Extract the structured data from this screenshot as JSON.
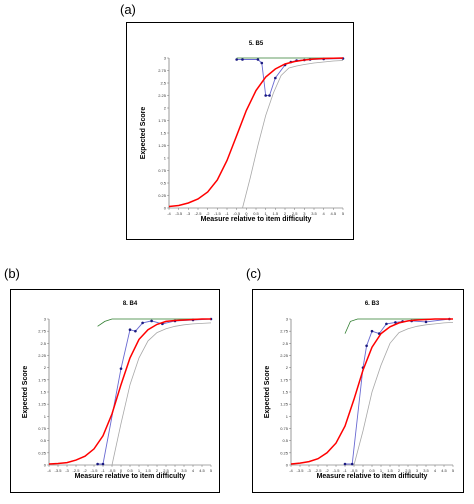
{
  "panels": [
    {
      "letter": "(a)"
    },
    {
      "letter": "(b)"
    },
    {
      "letter": "(c)"
    }
  ],
  "colors": {
    "model": "#ff0000",
    "observed": "#6a6ad2",
    "ci": "#a8a8a8",
    "ci_top": "#2f7d2f",
    "points": "#1a1a80",
    "frame": "#000000"
  },
  "chart_data": [
    {
      "type": "line",
      "title": "5. B5",
      "xlabel": "Measure relative to item difficulty",
      "ylabel": "Expected Score",
      "xlim": [
        -4,
        5
      ],
      "ylim": [
        0,
        3
      ],
      "xticks": [
        "-4",
        "-3.5",
        "-3",
        "-2.5",
        "-2",
        "-1.5",
        "-1",
        "-0.5",
        "0",
        "0.5",
        "1",
        "1.5",
        "2",
        "2.5",
        "3",
        "3.5",
        "4",
        "4.5",
        "5"
      ],
      "yticks": [
        "0",
        "0.25",
        "0.5",
        "0.75",
        "1",
        "1.25",
        "1.5",
        "1.75",
        "2",
        "2.25",
        "2.5",
        "2.75",
        "3"
      ],
      "series": [
        {
          "role": "model",
          "x": [
            -4,
            -3.5,
            -3,
            -2.5,
            -2,
            -1.5,
            -1,
            -0.5,
            0,
            0.5,
            1,
            1.5,
            2,
            2.5,
            3,
            3.5,
            4,
            4.5,
            5
          ],
          "y": [
            0.03,
            0.05,
            0.1,
            0.18,
            0.32,
            0.56,
            0.95,
            1.45,
            1.95,
            2.35,
            2.62,
            2.78,
            2.88,
            2.93,
            2.96,
            2.98,
            2.99,
            2.995,
            3.0
          ]
        },
        {
          "role": "observed",
          "x": [
            -0.5,
            -0.2,
            0.6,
            0.8,
            1.0,
            1.2,
            1.5,
            2.0,
            2.3,
            2.6,
            3.0,
            3.3,
            4.0,
            5.0
          ],
          "y": [
            2.97,
            2.97,
            2.97,
            2.9,
            2.25,
            2.25,
            2.6,
            2.86,
            2.92,
            2.95,
            2.96,
            2.97,
            2.98,
            2.99
          ]
        },
        {
          "role": "ci-lower",
          "x": [
            -0.2,
            0.2,
            0.6,
            1.0,
            1.4,
            1.8,
            2.2,
            2.6,
            3.0,
            3.5,
            4.0,
            4.5,
            5.0
          ],
          "y": [
            0,
            0.6,
            1.25,
            1.85,
            2.3,
            2.65,
            2.8,
            2.84,
            2.87,
            2.9,
            2.92,
            2.94,
            2.95
          ]
        },
        {
          "role": "ci-upper",
          "x": [
            -0.5,
            5.0
          ],
          "y": [
            3.0,
            3.0
          ]
        }
      ]
    },
    {
      "type": "line",
      "title": "8. B4",
      "xlabel": "Measure relative to item difficulty",
      "ylabel": "Expected Score",
      "xlim": [
        -4,
        5
      ],
      "ylim": [
        0,
        3
      ],
      "xticks": [
        "-4",
        "-3.5",
        "-3",
        "-2.5",
        "-2",
        "-1.5",
        "-1",
        "-0.5",
        "0",
        "0.5",
        "1",
        "1.5",
        "2",
        "2.5",
        "3",
        "3.5",
        "4",
        "4.5",
        "5"
      ],
      "yticks": [
        "0",
        "0.25",
        "0.5",
        "0.75",
        "1",
        "1.25",
        "1.5",
        "1.75",
        "2",
        "2.25",
        "2.5",
        "2.75",
        "3"
      ],
      "series": [
        {
          "role": "model",
          "x": [
            -4,
            -3.5,
            -3,
            -2.5,
            -2,
            -1.5,
            -1,
            -0.5,
            0,
            0.5,
            1,
            1.5,
            2,
            2.5,
            3,
            3.5,
            4,
            4.5,
            5
          ],
          "y": [
            0.02,
            0.03,
            0.05,
            0.1,
            0.18,
            0.33,
            0.6,
            1.05,
            1.65,
            2.2,
            2.58,
            2.78,
            2.89,
            2.95,
            2.97,
            2.98,
            2.99,
            3.0,
            3.0
          ]
        },
        {
          "role": "observed",
          "x": [
            -1.3,
            -1.0,
            0.0,
            0.5,
            0.8,
            1.2,
            1.7,
            2.3,
            3.0,
            4.0,
            5.0
          ],
          "y": [
            0.02,
            0.02,
            1.98,
            2.78,
            2.75,
            2.92,
            2.96,
            2.9,
            2.96,
            2.98,
            3.0
          ]
        },
        {
          "role": "ci-lower",
          "x": [
            -0.5,
            0,
            0.5,
            1.0,
            1.5,
            2.0,
            2.5,
            3.0,
            3.5,
            4.0,
            4.5,
            5.0
          ],
          "y": [
            0,
            0.85,
            1.65,
            2.2,
            2.55,
            2.72,
            2.8,
            2.85,
            2.88,
            2.9,
            2.91,
            2.92
          ]
        },
        {
          "role": "ci-upper",
          "x": [
            -1.3,
            -0.9,
            -0.5,
            5.0
          ],
          "y": [
            2.85,
            2.95,
            3.0,
            3.0
          ]
        }
      ]
    },
    {
      "type": "line",
      "title": "6. B3",
      "xlabel": "Measure relative to item difficulty",
      "ylabel": "Expected Score",
      "xlim": [
        -4,
        5
      ],
      "ylim": [
        0,
        3
      ],
      "xticks": [
        "-4",
        "-3.5",
        "-3",
        "-2.5",
        "-2",
        "-1.5",
        "-1",
        "-0.5",
        "0",
        "0.5",
        "1",
        "1.5",
        "2",
        "2.5",
        "3",
        "3.5",
        "4",
        "4.5",
        "5"
      ],
      "yticks": [
        "0",
        "0.25",
        "0.5",
        "0.75",
        "1",
        "1.25",
        "1.5",
        "1.75",
        "2",
        "2.25",
        "2.5",
        "2.75",
        "3"
      ],
      "series": [
        {
          "role": "model",
          "x": [
            -4,
            -3.5,
            -3,
            -2.5,
            -2,
            -1.5,
            -1,
            -0.5,
            0,
            0.5,
            1,
            1.5,
            2,
            2.5,
            3,
            3.5,
            4,
            4.5,
            5
          ],
          "y": [
            0.02,
            0.04,
            0.07,
            0.13,
            0.25,
            0.45,
            0.8,
            1.35,
            1.95,
            2.42,
            2.7,
            2.84,
            2.92,
            2.96,
            2.98,
            2.99,
            3.0,
            3.0,
            3.0
          ]
        },
        {
          "role": "observed",
          "x": [
            -1.0,
            -0.6,
            0.0,
            0.2,
            0.5,
            0.9,
            1.3,
            1.8,
            2.2,
            2.7,
            3.5,
            4.8
          ],
          "y": [
            0.02,
            0.02,
            2.0,
            2.45,
            2.75,
            2.7,
            2.9,
            2.93,
            2.95,
            2.96,
            2.94,
            3.0
          ]
        },
        {
          "role": "ci-lower",
          "x": [
            -0.5,
            0,
            0.5,
            1.0,
            1.5,
            2.0,
            2.5,
            3.0,
            3.5,
            4.0,
            4.5,
            5.0
          ],
          "y": [
            0,
            0.7,
            1.5,
            2.05,
            2.5,
            2.72,
            2.8,
            2.85,
            2.88,
            2.9,
            2.92,
            2.93
          ]
        },
        {
          "role": "ci-upper",
          "x": [
            -1.0,
            -0.7,
            -0.3,
            5.0
          ],
          "y": [
            2.7,
            2.95,
            3.0,
            3.0
          ]
        }
      ]
    }
  ]
}
